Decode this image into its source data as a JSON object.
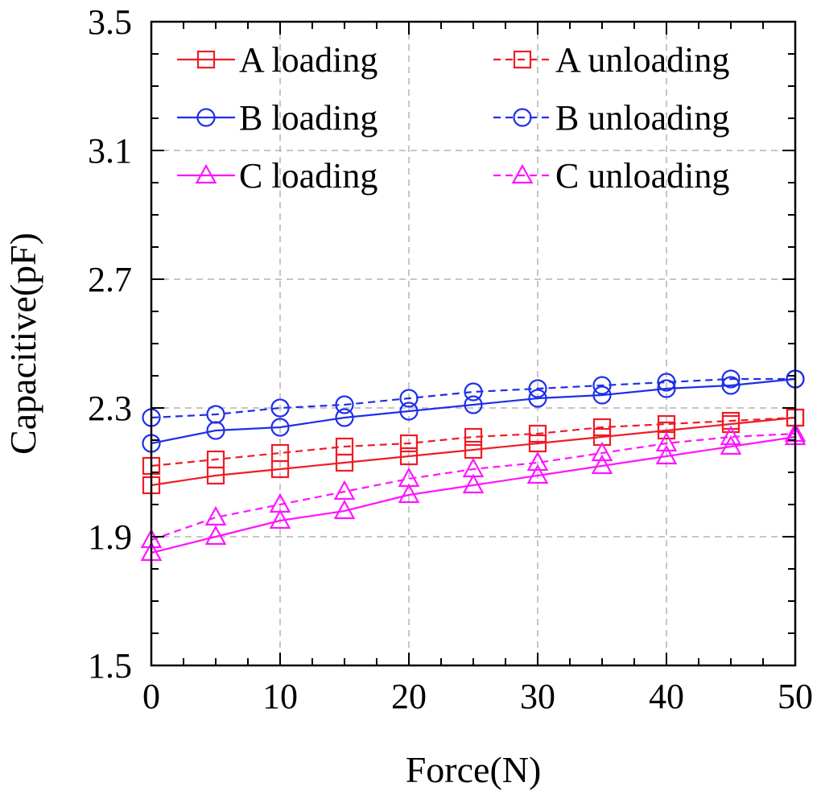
{
  "chart_data": {
    "type": "line",
    "xlabel": "Force(N)",
    "ylabel": "Capacitive(pF)",
    "xlim": [
      0,
      50
    ],
    "ylim": [
      1.5,
      3.5
    ],
    "xticks": [
      0,
      10,
      20,
      30,
      40,
      50
    ],
    "yticks": [
      "1.5",
      "1.9",
      "2.3",
      "2.7",
      "3.1",
      "3.5"
    ],
    "grid": true,
    "legend_position": "top",
    "x": [
      0,
      5,
      10,
      15,
      20,
      25,
      30,
      35,
      40,
      45,
      50
    ],
    "series": [
      {
        "name": "A loading",
        "color": "#ee1c25",
        "marker": "square",
        "dash": false,
        "values": [
          2.06,
          2.09,
          2.11,
          2.13,
          2.15,
          2.17,
          2.19,
          2.21,
          2.23,
          2.25,
          2.27
        ]
      },
      {
        "name": "A unloading",
        "color": "#ee1c25",
        "marker": "square",
        "dash": true,
        "values": [
          2.12,
          2.14,
          2.16,
          2.18,
          2.19,
          2.21,
          2.22,
          2.24,
          2.25,
          2.26,
          2.27
        ]
      },
      {
        "name": "B loading",
        "color": "#1f2fe8",
        "marker": "circle",
        "dash": false,
        "values": [
          2.19,
          2.23,
          2.24,
          2.27,
          2.29,
          2.31,
          2.33,
          2.34,
          2.36,
          2.37,
          2.39
        ]
      },
      {
        "name": "B unloading",
        "color": "#1f2fe8",
        "marker": "circle",
        "dash": true,
        "values": [
          2.27,
          2.28,
          2.3,
          2.31,
          2.33,
          2.35,
          2.36,
          2.37,
          2.38,
          2.39,
          2.39
        ]
      },
      {
        "name": "C loading",
        "color": "#ff14ff",
        "marker": "triangle",
        "dash": false,
        "values": [
          1.85,
          1.9,
          1.95,
          1.98,
          2.03,
          2.06,
          2.09,
          2.12,
          2.15,
          2.18,
          2.21
        ]
      },
      {
        "name": "C unloading",
        "color": "#ff14ff",
        "marker": "triangle",
        "dash": true,
        "values": [
          1.89,
          1.96,
          2.0,
          2.04,
          2.08,
          2.11,
          2.13,
          2.16,
          2.19,
          2.21,
          2.22
        ]
      }
    ]
  }
}
